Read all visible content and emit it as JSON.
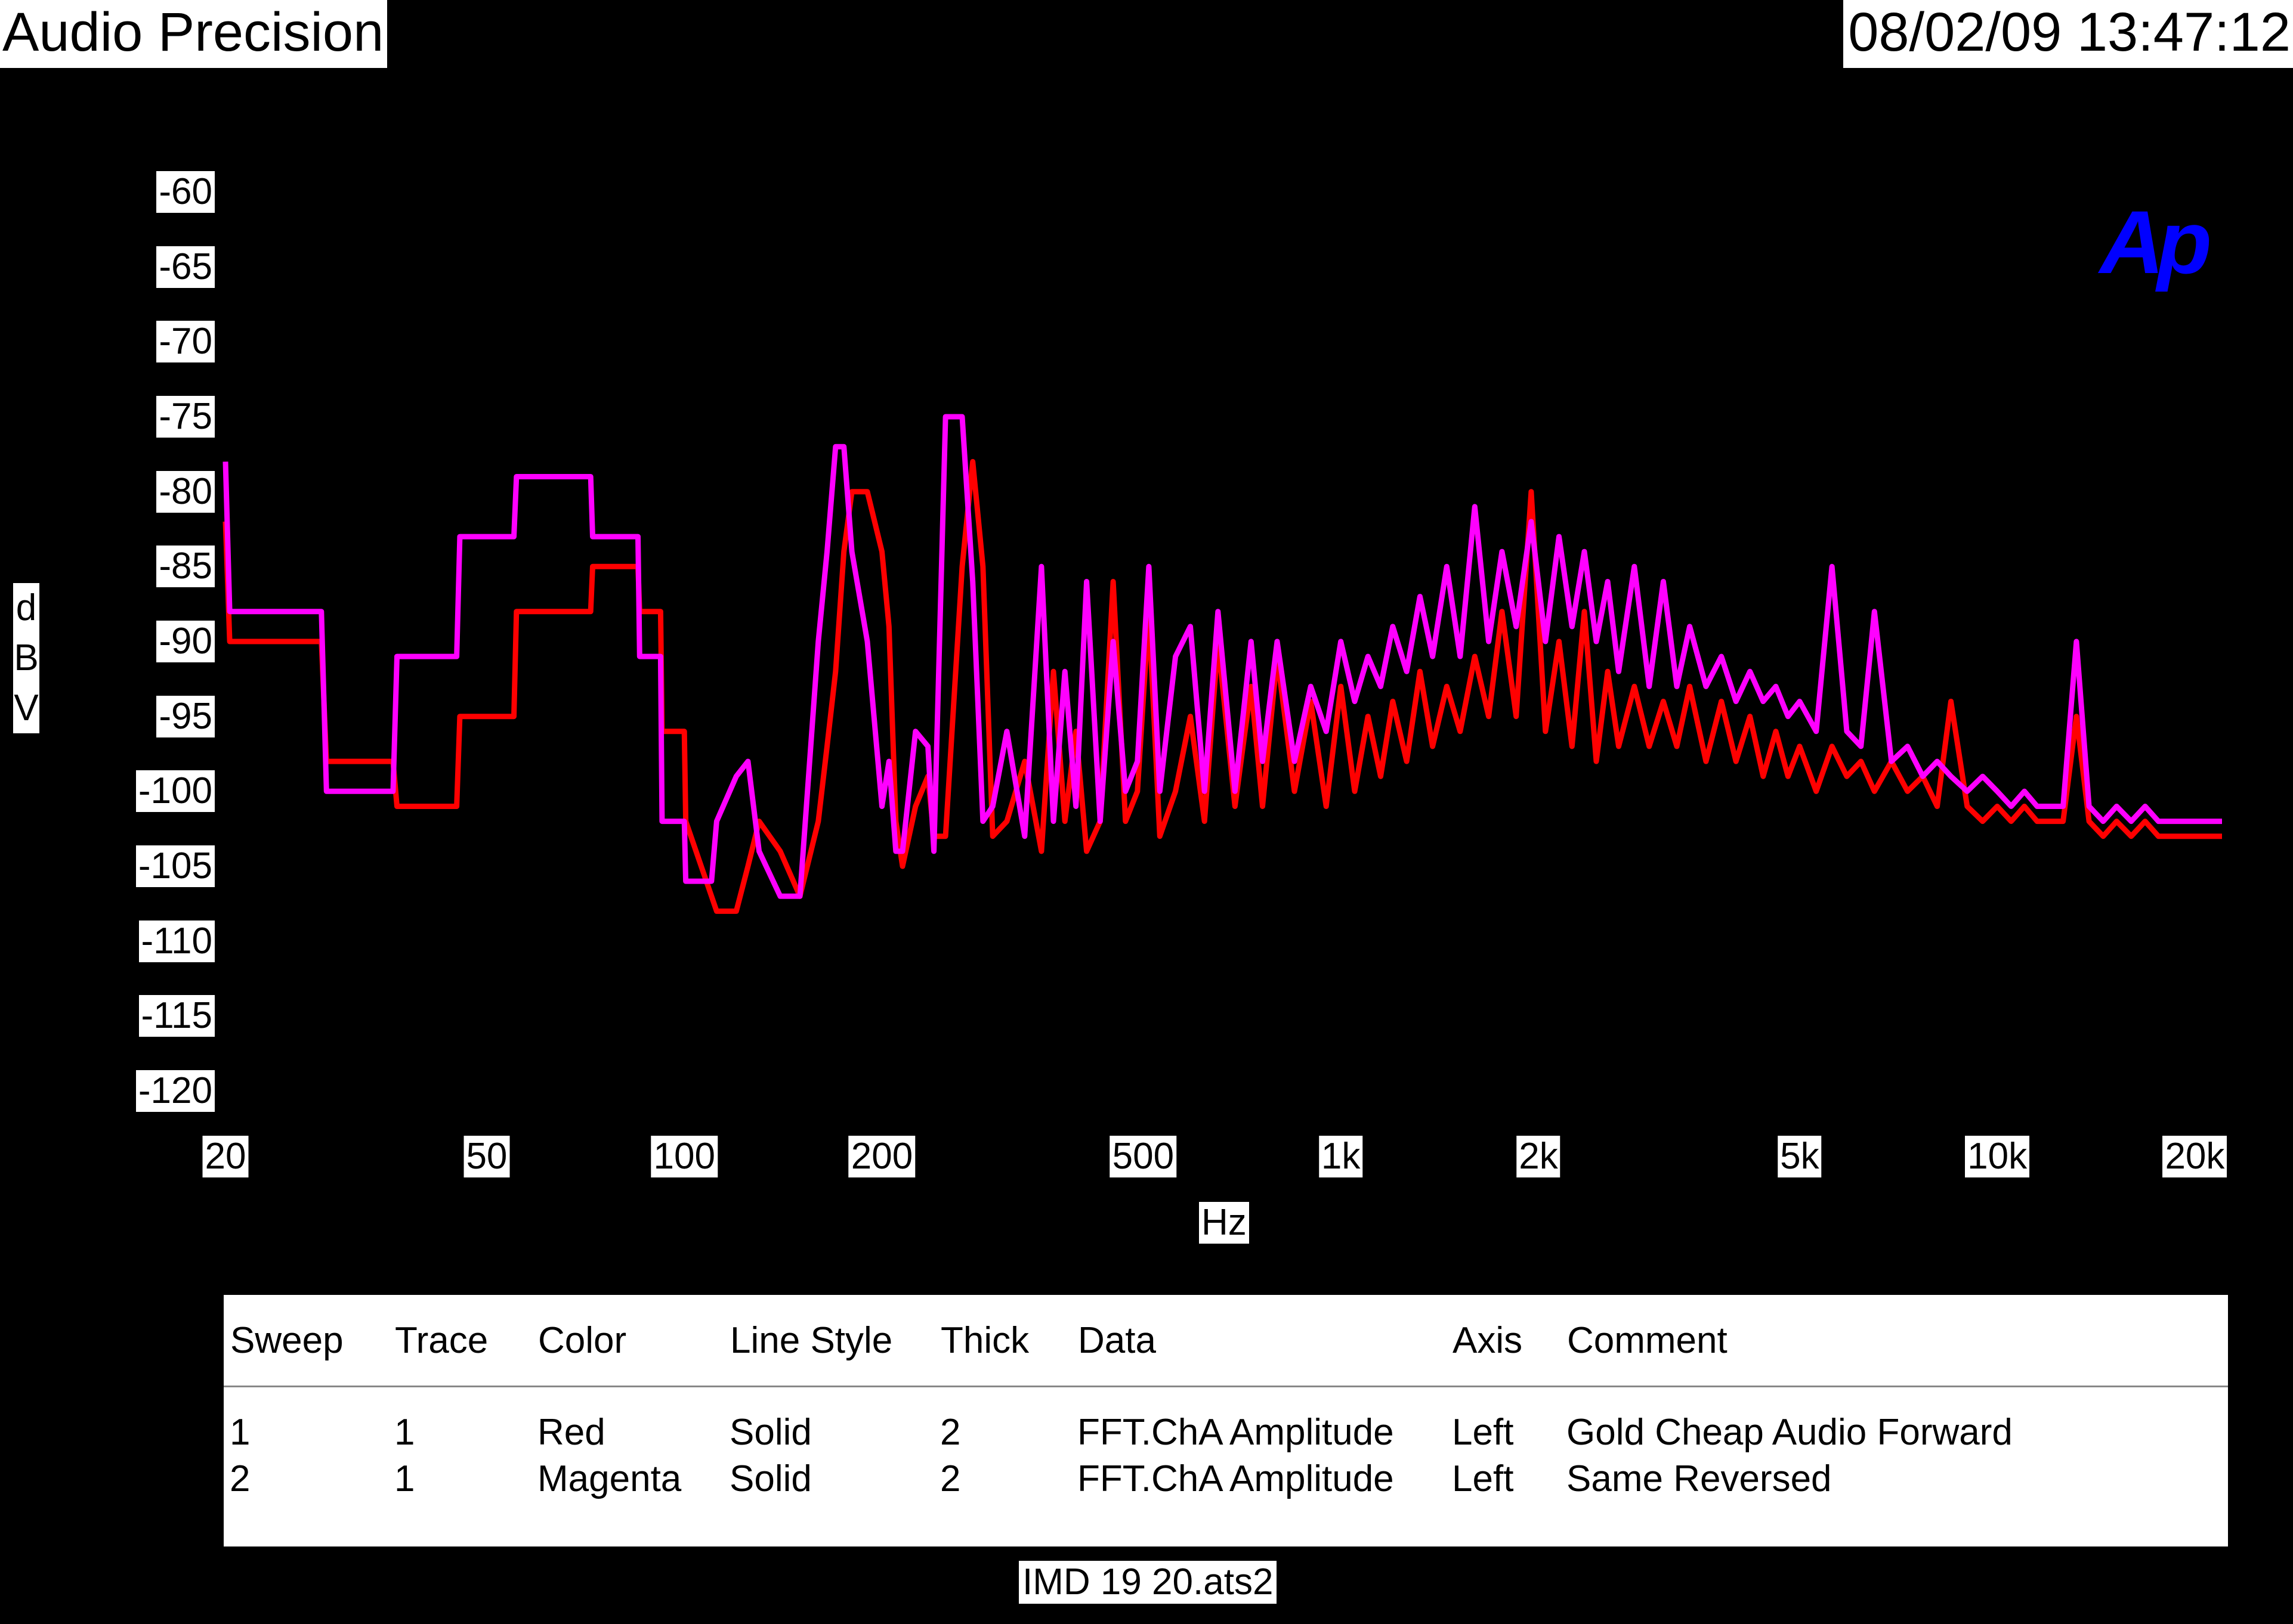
{
  "header": {
    "app_title": "Audio Precision",
    "timestamp": "08/02/09 13:47:12"
  },
  "logo": {
    "text": "Ap",
    "color": "#0000ff"
  },
  "chart_data": {
    "type": "line",
    "xscale": "log",
    "xlim": [
      20,
      22000
    ],
    "ylim": [
      -122,
      -58
    ],
    "ylabel": "dBV",
    "xlabel": "Hz",
    "y_ticks": [
      -60,
      -65,
      -70,
      -75,
      -80,
      -85,
      -90,
      -95,
      -100,
      -105,
      -110,
      -115,
      -120
    ],
    "y_tick_labels": [
      "-60",
      "-65",
      "-70",
      "-75",
      "-80",
      "-85",
      "-90",
      "-95",
      "-100",
      "-105",
      "-110",
      "-115",
      "-120"
    ],
    "x_ticks": [
      20,
      50,
      100,
      200,
      500,
      1000,
      2000,
      5000,
      10000,
      20000
    ],
    "x_tick_labels": [
      "20",
      "50",
      "100",
      "200",
      "500",
      "1k",
      "2k",
      "5k",
      "10k",
      "20k"
    ],
    "background": "#000000",
    "series": [
      {
        "name": "Gold Cheap Audio Forward",
        "color": "#ff0000",
        "x": [
          20,
          20.3,
          28,
          28.5,
          36,
          36.5,
          45,
          45.5,
          55,
          55.5,
          72,
          72.5,
          85,
          85.5,
          92,
          92.5,
          100,
          100.5,
          110,
          112,
          120,
          125,
          130,
          140,
          150,
          160,
          165,
          170,
          175,
          180,
          190,
          200,
          205,
          210,
          215,
          225,
          235,
          240,
          250,
          265,
          275,
          285,
          295,
          310,
          330,
          350,
          365,
          380,
          395,
          410,
          430,
          450,
          470,
          490,
          510,
          530,
          560,
          590,
          620,
          650,
          690,
          730,
          760,
          800,
          850,
          900,
          950,
          1000,
          1050,
          1100,
          1150,
          1200,
          1260,
          1320,
          1380,
          1450,
          1520,
          1600,
          1680,
          1760,
          1850,
          1950,
          2050,
          2150,
          2250,
          2350,
          2450,
          2550,
          2650,
          2800,
          2950,
          3100,
          3250,
          3400,
          3600,
          3800,
          4000,
          4200,
          4400,
          4600,
          4800,
          5000,
          5300,
          5600,
          5900,
          6200,
          6500,
          6900,
          7300,
          7700,
          8100,
          8500,
          9000,
          9500,
          10000,
          10500,
          11000,
          11500,
          12000,
          12600,
          13200,
          13800,
          14500,
          15200,
          16000,
          16800,
          17600,
          18400,
          19200,
          20000,
          20800,
          21600,
          22000
        ],
        "y": [
          -82,
          -90,
          -90,
          -98,
          -98,
          -101,
          -101,
          -95,
          -95,
          -88,
          -88,
          -85,
          -85,
          -88,
          -88,
          -96,
          -96,
          -102,
          -107,
          -108,
          -108,
          -105,
          -102,
          -104,
          -107,
          -102,
          -97,
          -92,
          -84,
          -80,
          -80,
          -84,
          -89,
          -102,
          -105,
          -101,
          -99,
          -103,
          -103,
          -85,
          -78,
          -85,
          -103,
          -102,
          -98,
          -104,
          -92,
          -102,
          -96,
          -104,
          -102,
          -86,
          -102,
          -100,
          -88,
          -103,
          -100,
          -95,
          -102,
          -90,
          -101,
          -93,
          -101,
          -91,
          -100,
          -94,
          -101,
          -93,
          -100,
          -95,
          -99,
          -94,
          -98,
          -92,
          -97,
          -93,
          -96,
          -91,
          -95,
          -88,
          -95,
          -80,
          -96,
          -90,
          -97,
          -88,
          -98,
          -92,
          -97,
          -93,
          -97,
          -94,
          -97,
          -93,
          -98,
          -94,
          -98,
          -95,
          -99,
          -96,
          -99,
          -97,
          -100,
          -97,
          -99,
          -98,
          -100,
          -98,
          -100,
          -99,
          -101,
          -94,
          -101,
          -102,
          -101,
          -102,
          -101,
          -102,
          -102,
          -102,
          -95,
          -102,
          -103,
          -102,
          -103,
          -102,
          -103,
          -103,
          -103,
          -103,
          -103,
          -103,
          -103
        ]
      },
      {
        "name": "Same Reversed",
        "color": "#ff00ff",
        "x": [
          20,
          20.3,
          28,
          28.5,
          36,
          36.5,
          45,
          45.5,
          55,
          55.5,
          72,
          72.5,
          85,
          85.5,
          92,
          92.5,
          100,
          100.5,
          110,
          112,
          120,
          125,
          130,
          140,
          150,
          160,
          165,
          170,
          175,
          180,
          190,
          200,
          205,
          210,
          215,
          225,
          235,
          240,
          250,
          265,
          275,
          285,
          295,
          310,
          330,
          350,
          365,
          380,
          395,
          410,
          430,
          450,
          470,
          490,
          510,
          530,
          560,
          590,
          620,
          650,
          690,
          730,
          760,
          800,
          850,
          900,
          950,
          1000,
          1050,
          1100,
          1150,
          1200,
          1260,
          1320,
          1380,
          1450,
          1520,
          1600,
          1680,
          1760,
          1850,
          1950,
          2050,
          2150,
          2250,
          2350,
          2450,
          2550,
          2650,
          2800,
          2950,
          3100,
          3250,
          3400,
          3600,
          3800,
          4000,
          4200,
          4400,
          4600,
          4800,
          5000,
          5300,
          5600,
          5900,
          6200,
          6500,
          6900,
          7300,
          7700,
          8100,
          8500,
          9000,
          9500,
          10000,
          10500,
          11000,
          11500,
          12000,
          12600,
          13200,
          13800,
          14500,
          15200,
          16000,
          16800,
          17600,
          18400,
          19200,
          20000,
          20800,
          21600,
          22000
        ],
        "y": [
          -78,
          -88,
          -88,
          -100,
          -100,
          -91,
          -91,
          -83,
          -83,
          -79,
          -79,
          -83,
          -83,
          -91,
          -91,
          -102,
          -102,
          -106,
          -106,
          -102,
          -99,
          -98,
          -104,
          -107,
          -107,
          -90,
          -84,
          -77,
          -77,
          -84,
          -90,
          -101,
          -98,
          -104,
          -104,
          -96,
          -97,
          -104,
          -75,
          -75,
          -86,
          -102,
          -101,
          -96,
          -103,
          -85,
          -102,
          -92,
          -101,
          -86,
          -102,
          -90,
          -100,
          -98,
          -85,
          -100,
          -91,
          -89,
          -100,
          -88,
          -100,
          -90,
          -98,
          -90,
          -98,
          -93,
          -96,
          -90,
          -94,
          -91,
          -93,
          -89,
          -92,
          -87,
          -91,
          -85,
          -91,
          -81,
          -90,
          -84,
          -89,
          -82,
          -90,
          -83,
          -89,
          -84,
          -90,
          -86,
          -92,
          -85,
          -93,
          -86,
          -93,
          -89,
          -93,
          -91,
          -94,
          -92,
          -94,
          -93,
          -95,
          -94,
          -96,
          -85,
          -96,
          -97,
          -88,
          -98,
          -97,
          -99,
          -98,
          -99,
          -100,
          -99,
          -100,
          -101,
          -100,
          -101,
          -101,
          -101,
          -90,
          -101,
          -102,
          -101,
          -102,
          -101,
          -102,
          -102,
          -102,
          -102,
          -102,
          -102,
          -102
        ]
      }
    ]
  },
  "legend": {
    "headers": [
      "Sweep",
      "Trace",
      "Color",
      "Line Style",
      "Thick",
      "Data",
      "Axis",
      "Comment"
    ],
    "rows": [
      [
        "1",
        "1",
        "Red",
        "Solid",
        "2",
        "FFT.ChA Amplitude",
        "Left",
        "Gold Cheap Audio Forward"
      ],
      [
        "2",
        "1",
        "Magenta",
        "Solid",
        "2",
        "FFT.ChA Amplitude",
        "Left",
        "Same Reversed"
      ]
    ]
  },
  "footer": {
    "filename": "IMD 19 20.ats2"
  }
}
